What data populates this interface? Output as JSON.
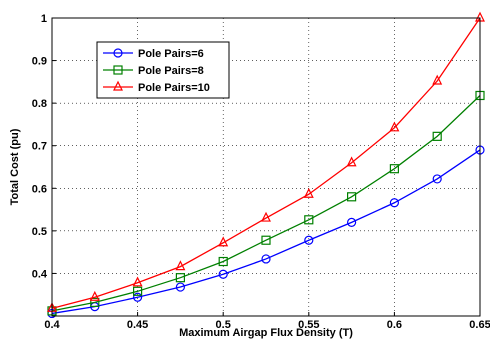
{
  "chart_data": {
    "type": "line",
    "title": "",
    "xlabel": "Maximum Airgap Flux Density (T)",
    "ylabel": "Total Cost (pu)",
    "xlim": [
      0.4,
      0.65
    ],
    "ylim": [
      0.3,
      1.0
    ],
    "xticks": [
      "0.4",
      "0.45",
      "0.5",
      "0.55",
      "0.6",
      "0.65"
    ],
    "yticks": [
      "0.4",
      "0.5",
      "0.6",
      "0.7",
      "0.8",
      "0.9",
      "1"
    ],
    "grid": true,
    "legend_position": "upper-left",
    "x": [
      0.4,
      0.425,
      0.45,
      0.475,
      0.5,
      0.525,
      0.55,
      0.575,
      0.6,
      0.625,
      0.65
    ],
    "series": [
      {
        "name": "Pole Pairs=6",
        "color": "#0000ff",
        "marker": "circle",
        "values": [
          0.306,
          0.322,
          0.344,
          0.368,
          0.398,
          0.434,
          0.478,
          0.52,
          0.566,
          0.622,
          0.69
        ]
      },
      {
        "name": "Pole Pairs=8",
        "color": "#008000",
        "marker": "square",
        "values": [
          0.312,
          0.332,
          0.358,
          0.39,
          0.428,
          0.478,
          0.526,
          0.58,
          0.646,
          0.722,
          0.818
        ]
      },
      {
        "name": "Pole Pairs=10",
        "color": "#ff0000",
        "marker": "triangle",
        "values": [
          0.318,
          0.344,
          0.378,
          0.416,
          0.472,
          0.53,
          0.586,
          0.66,
          0.742,
          0.852,
          1.0
        ]
      }
    ]
  }
}
